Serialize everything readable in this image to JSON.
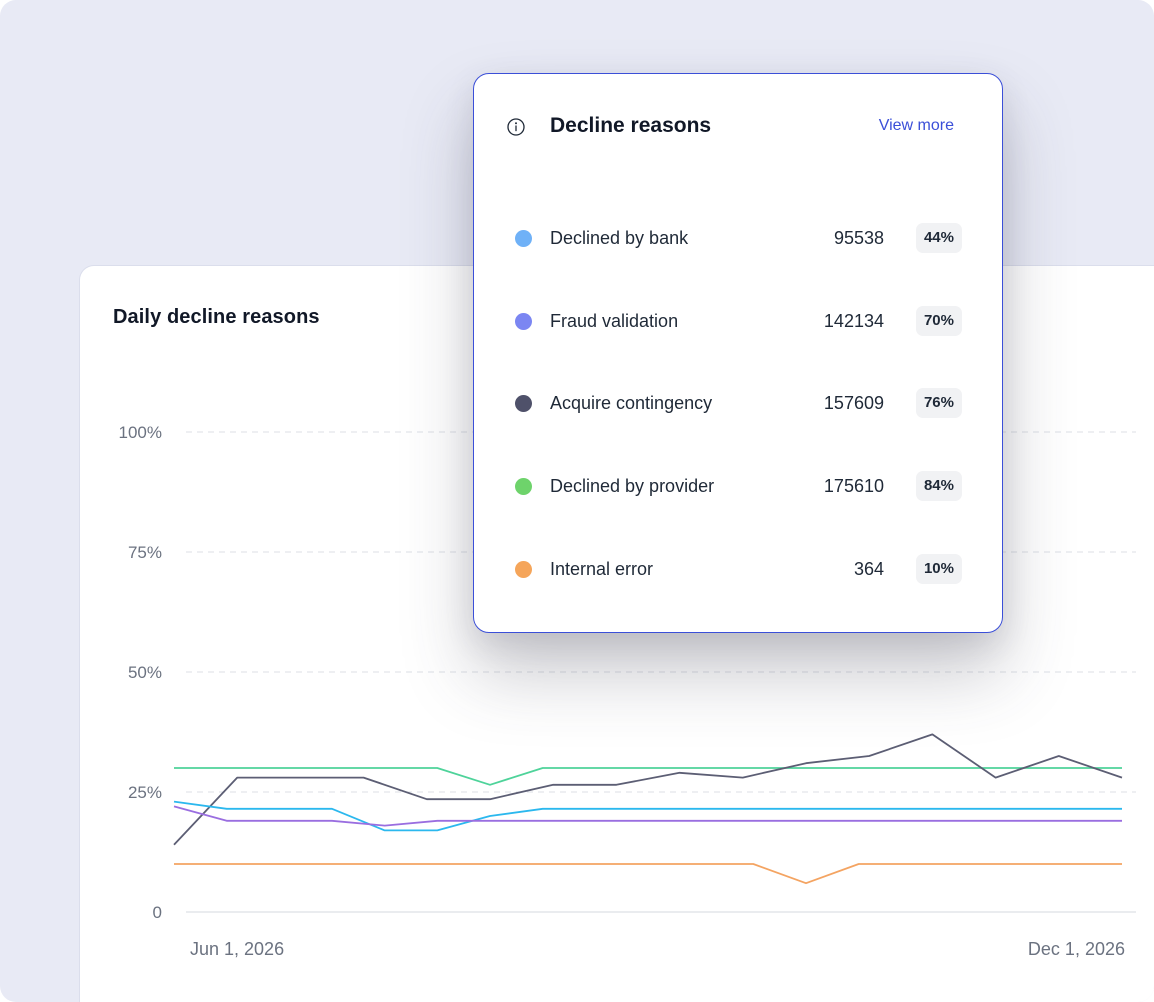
{
  "card": {
    "title": "Daily decline reasons"
  },
  "popup": {
    "title": "Decline reasons",
    "view_more": "View more",
    "items": [
      {
        "label": "Declined by bank",
        "value": "95538",
        "pct": "44%",
        "color": "#6fb1f7"
      },
      {
        "label": "Fraud validation",
        "value": "142134",
        "pct": "70%",
        "color": "#7b86f2"
      },
      {
        "label": "Acquire contingency",
        "value": "157609",
        "pct": "76%",
        "color": "#4f516a"
      },
      {
        "label": "Declined by provider",
        "value": "175610",
        "pct": "84%",
        "color": "#6ed36b"
      },
      {
        "label": "Internal error",
        "value": "364",
        "pct": "10%",
        "color": "#f5a55a"
      }
    ]
  },
  "chart_data": {
    "type": "line",
    "ylim": [
      0,
      100
    ],
    "y_ticks": [
      "0",
      "25%",
      "50%",
      "75%",
      "100%"
    ],
    "x_tick_labels": [
      "Jun 1, 2026",
      "Dec 1, 2026"
    ],
    "grid": true,
    "series": [
      {
        "color": "#4ed39a",
        "values": [
          30,
          30,
          30,
          30,
          30,
          30,
          26.5,
          30,
          30,
          30,
          30,
          30,
          30,
          30,
          30,
          30,
          30,
          30,
          30
        ]
      },
      {
        "color": "#5c5e74",
        "values": [
          14,
          28,
          28,
          28,
          23.5,
          23.5,
          26.5,
          26.5,
          29,
          28,
          31,
          32.5,
          37,
          28,
          32.5,
          28
        ]
      },
      {
        "color": "#2bb8ee",
        "values": [
          23,
          21.5,
          21.5,
          21.5,
          17,
          17,
          20,
          21.5,
          21.5,
          21.5,
          21.5,
          21.5,
          21.5,
          21.5,
          21.5,
          21.5,
          21.5,
          21.5,
          21.5
        ]
      },
      {
        "color": "#9a6ee0",
        "values": [
          22,
          19,
          19,
          19,
          18,
          19,
          19,
          19,
          19,
          19,
          19,
          19,
          19,
          19,
          19,
          19,
          19,
          19,
          19
        ]
      },
      {
        "color": "#f4a462",
        "values": [
          10,
          10,
          10,
          10,
          10,
          10,
          10,
          10,
          10,
          10,
          10,
          10,
          6,
          10,
          10,
          10,
          10,
          10,
          10
        ]
      }
    ]
  }
}
